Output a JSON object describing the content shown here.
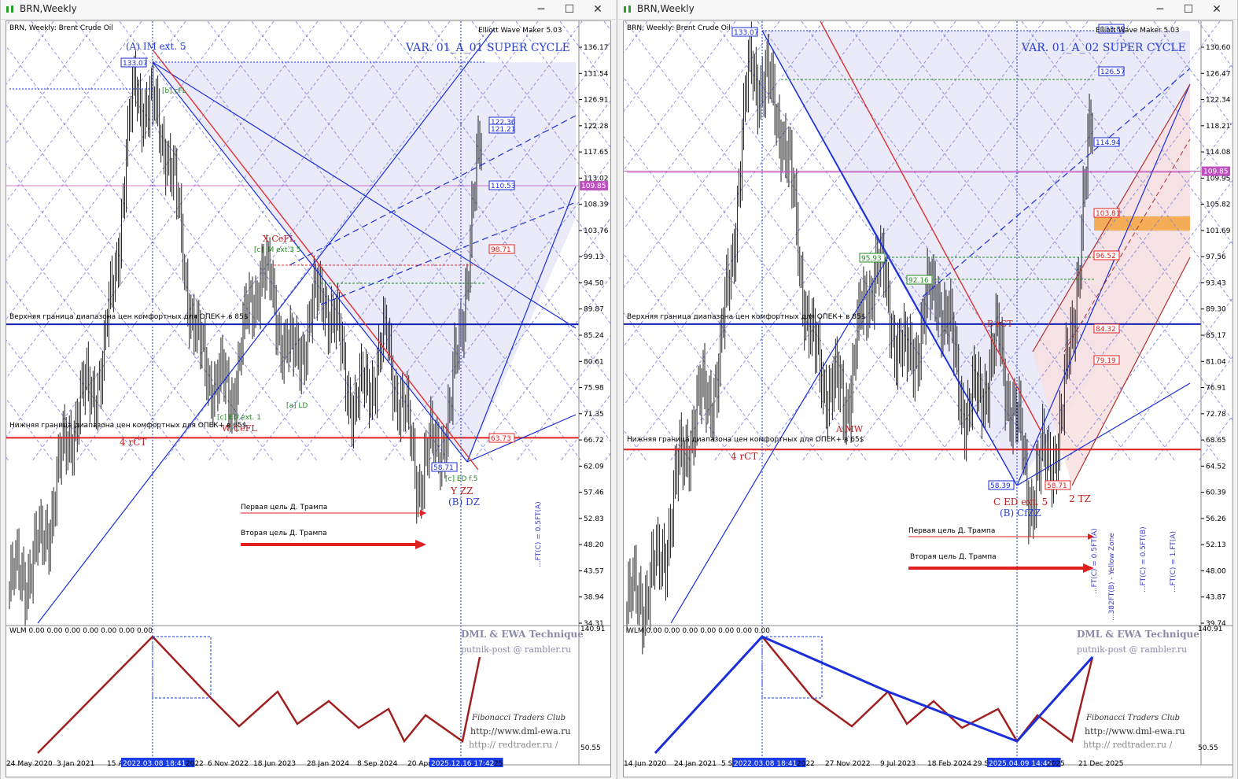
{
  "windows": [
    {
      "title": "BRN,Weekly",
      "symbol_line": "BRN, Weekly:  Brent Crude Oil",
      "maker": "Elliott Wave Maker 5.03",
      "variant": "VAR. 01_A_01 SUPER CYCLE",
      "osc_label": "WLM 0.00 0.00 0.00 0.00 0.00 0.00 0.00",
      "osc_scale_top": "140.91",
      "osc_scale_bottom": "50.55",
      "watermark1": "DML & EWA Technique",
      "watermark2": "putnik-post @ rambler.ru",
      "fib_traders": "Fibonacci    Traders    Club",
      "site1": "http://www.dml-ewa.ru",
      "site2": "http:// redtrader.ru /",
      "upper_band_text": "Верхняя граница диапазона цен комфортных для ОПЕК+ в 85$",
      "lower_band_text": "Нижняя граница диапазона цен комфортных для ОПЕК+ в 65$",
      "trump1": "Первая цель Д. Трампа",
      "trump2": "Вторая цель Д. Трампа",
      "price_ticks": [
        "136.17",
        "131.54",
        "126.91",
        "122.28",
        "117.65",
        "113.02",
        "108.39",
        "103.76",
        "99.13",
        "94.50",
        "89.87",
        "85.24",
        "80.61",
        "75.98",
        "71.35",
        "66.72",
        "62.09",
        "57.46",
        "52.83",
        "48.20",
        "43.57",
        "38.94",
        "34.31"
      ],
      "current_price": "109.85",
      "dates": [
        "24 May 2020",
        "3 Jan 2021",
        "15 A",
        "2022.03.08 18:41",
        "2022",
        "6 Nov 2022",
        "18 Jun 2023",
        "28 Jan 2024",
        "8 Sep 2024",
        "20 Apr",
        "2025.12.16 17:42",
        "25"
      ],
      "boxes": [
        "133.07",
        "122.36",
        "121.21",
        "110.53",
        "98.71",
        "63.73",
        "58.71"
      ],
      "labels": {
        "a_im": "(A) IM ext. 5",
        "x_cefl": "X CeFL",
        "c_im": "[c] IM ext.3 5",
        "b_cefl": "[b] cFL",
        "c_ed": "[c] ED ext. 1",
        "w_cefl": "W CeFL",
        "a_ld": "[a] LD",
        "c_ed5": "[c] ED f.5",
        "y_zz": "Y ZZ",
        "b_dz": "(B) DZ",
        "four_rct": "4 rCT",
        "ft_text": "...FT(C) = 0.5FT(A)"
      }
    },
    {
      "title": "BRN,Weekly",
      "symbol_line": "BRN, Weekly:  Brent Crude Oil",
      "maker": "Elliott Wave Maker 5.03",
      "variant": "VAR. 01_A_02 SUPER CYCLE",
      "osc_label": "WLM 0.00 0.00 0.00 0.00 0.00 0.00 0.00",
      "osc_scale_top": "140.91",
      "osc_scale_bottom": "50.55",
      "watermark1": "DML & EWA Technique",
      "watermark2": "putnik-post @ rambler.ru",
      "fib_traders": "Fibonacci    Traders    Club",
      "site1": "http://www.dml-ewa.ru",
      "site2": "http:// redtrader.ru /",
      "upper_band_text": "Верхняя граница диапазона цен комфортных для ОПЕК+ в 85$",
      "lower_band_text": "Нижняя граница диапазона цен комфортных для ОПЕК+ в 65$",
      "trump1": "Первая цель Д. Трампа",
      "trump2": "Вторая цель Д. Трампа",
      "price_ticks": [
        "130.60",
        "126.47",
        "122.34",
        "118.21",
        "114.08",
        "109.95",
        "105.82",
        "101.69",
        "97.56",
        "93.43",
        "89.30",
        "85.17",
        "81.04",
        "76.91",
        "72.78",
        "68.65",
        "64.52",
        "60.39",
        "56.26",
        "52.13",
        "48.00",
        "43.87",
        "39.74"
      ],
      "current_price": "109.85",
      "dates": [
        "14 Jun 2020",
        "24 Jan 2021",
        "5 S",
        "2022.03.08 18:41",
        "2022",
        "27 Nov 2022",
        "9 Jul 2023",
        "18 Feb 2024",
        "29 S",
        "2025.04.09 14:46",
        "2025",
        "21 Dec 2025"
      ],
      "boxes": [
        "133.07",
        "133.82",
        "126.57",
        "114.94",
        "103.81",
        "96.52",
        "95.93",
        "92.16",
        "84.32",
        "79.19",
        "58.39",
        "58.71"
      ],
      "labels": {
        "a_mw": "A MW",
        "b_rct": "B rCT",
        "c_ed5": "C ED ext. 5",
        "b_czz": "(B) CfZZ",
        "two_tz": "2 TZ",
        "four_rct": "4 rCT",
        "ft1": "...FT(C) = 0.5FT(A)",
        "ft2": "...382FT(B) - Yellow Zone",
        "ft3": "...FT(C) = 0.5FT(B)",
        "ft4": "...FT(C) = 1.FT(A)"
      }
    }
  ],
  "chart_data": [
    {
      "type": "line",
      "title": "BRN, Weekly: Brent Crude Oil",
      "x": [
        "2020-05",
        "2020-11",
        "2021-03",
        "2021-07",
        "2022-03",
        "2022-06",
        "2022-12",
        "2023-04",
        "2023-09",
        "2023-12",
        "2024-04",
        "2024-09",
        "2025-01",
        "2025-04",
        "2025-09",
        "2026-01"
      ],
      "series": [
        {
          "name": "Brent",
          "values": [
            38,
            45,
            68,
            78,
            128,
            118,
            80,
            72,
            96,
            78,
            92,
            70,
            82,
            58,
            68,
            118
          ]
        }
      ],
      "ylim": [
        32,
        138
      ]
    },
    {
      "type": "line",
      "title": "BRN, Weekly: Brent Crude Oil",
      "x": [
        "2020-06",
        "2020-11",
        "2021-03",
        "2021-07",
        "2022-03",
        "2022-06",
        "2022-12",
        "2023-04",
        "2023-09",
        "2023-12",
        "2024-04",
        "2024-09",
        "2025-01",
        "2025-04",
        "2025-09",
        "2026-01"
      ],
      "series": [
        {
          "name": "Brent",
          "values": [
            39,
            45,
            68,
            78,
            128,
            118,
            80,
            72,
            96,
            78,
            92,
            70,
            82,
            58,
            68,
            118
          ]
        }
      ],
      "ylim": [
        37,
        133
      ]
    }
  ]
}
